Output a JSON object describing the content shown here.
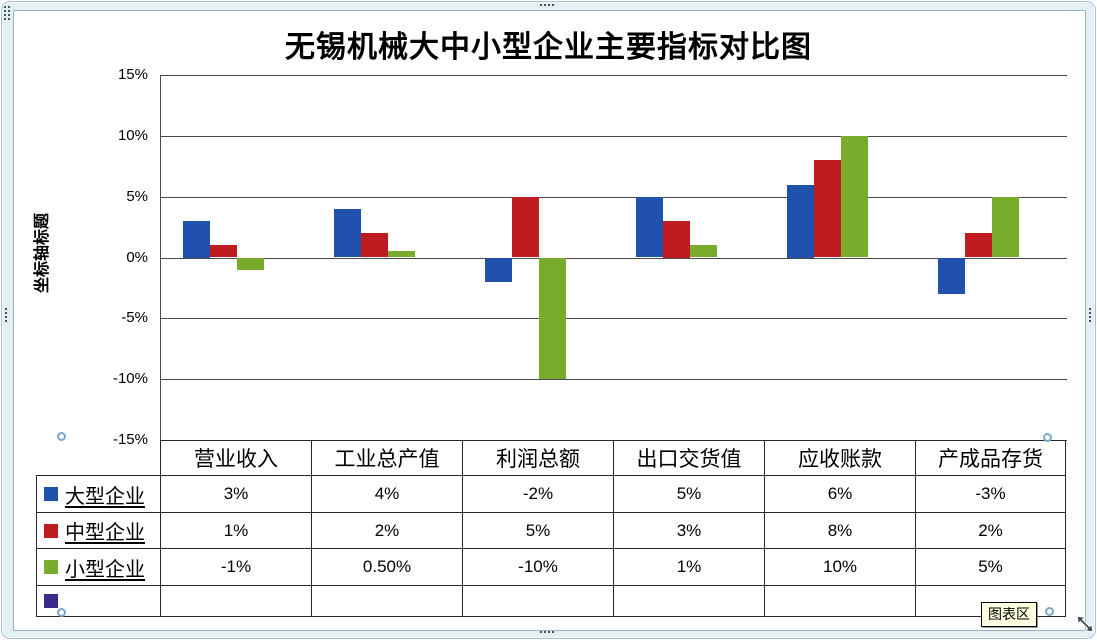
{
  "window": {
    "tooltip_label": "图表区"
  },
  "chart_data": {
    "type": "bar",
    "title": "无锡机械大中小型企业主要指标对比图",
    "y_axis_title": "坐标轴标题",
    "xlabel": "",
    "ylabel": "坐标轴标题",
    "y_tick_labels": [
      "15%",
      "10%",
      "5%",
      "0%",
      "-5%",
      "-10%",
      "-15%"
    ],
    "ylim": [
      -15,
      15
    ],
    "ytick_step_pct": 5,
    "grid": true,
    "legend_position": "data-table-left",
    "data_table_shown": true,
    "categories": [
      "营业收入",
      "工业总产值",
      "利润总额",
      "出口交货值",
      "应收账款",
      "产成品存货"
    ],
    "series": [
      {
        "name": "大型企业",
        "color": "#1F51AD",
        "values": [
          3,
          4,
          -2,
          5,
          6,
          -3
        ],
        "labels": [
          "3%",
          "4%",
          "-2%",
          "5%",
          "6%",
          "-3%"
        ]
      },
      {
        "name": "中型企业",
        "color": "#BE1C20",
        "values": [
          1,
          2,
          5,
          3,
          8,
          2
        ],
        "labels": [
          "1%",
          "2%",
          "5%",
          "3%",
          "8%",
          "2%"
        ]
      },
      {
        "name": "小型企业",
        "color": "#7AAC2C",
        "values": [
          -1,
          0.5,
          -10,
          1,
          10,
          5
        ],
        "labels": [
          "-1%",
          "0.50%",
          "-10%",
          "1%",
          "10%",
          "5%"
        ]
      }
    ],
    "empty_fourth_legend_row": {
      "label": "",
      "color": "#3A2B8B"
    }
  },
  "colors": {
    "bar_blue": "#1F51AD",
    "bar_red": "#BE1C20",
    "bar_green": "#7AAC2C",
    "empty_series_purple": "#3A2B8B",
    "selection_frame_band": "#E2EFF5",
    "selection_handle_ring": "#7AA9C8",
    "gridline": "#4A4A4A",
    "table_border": "#262626",
    "tooltip_bg": "#FFFFE1"
  }
}
